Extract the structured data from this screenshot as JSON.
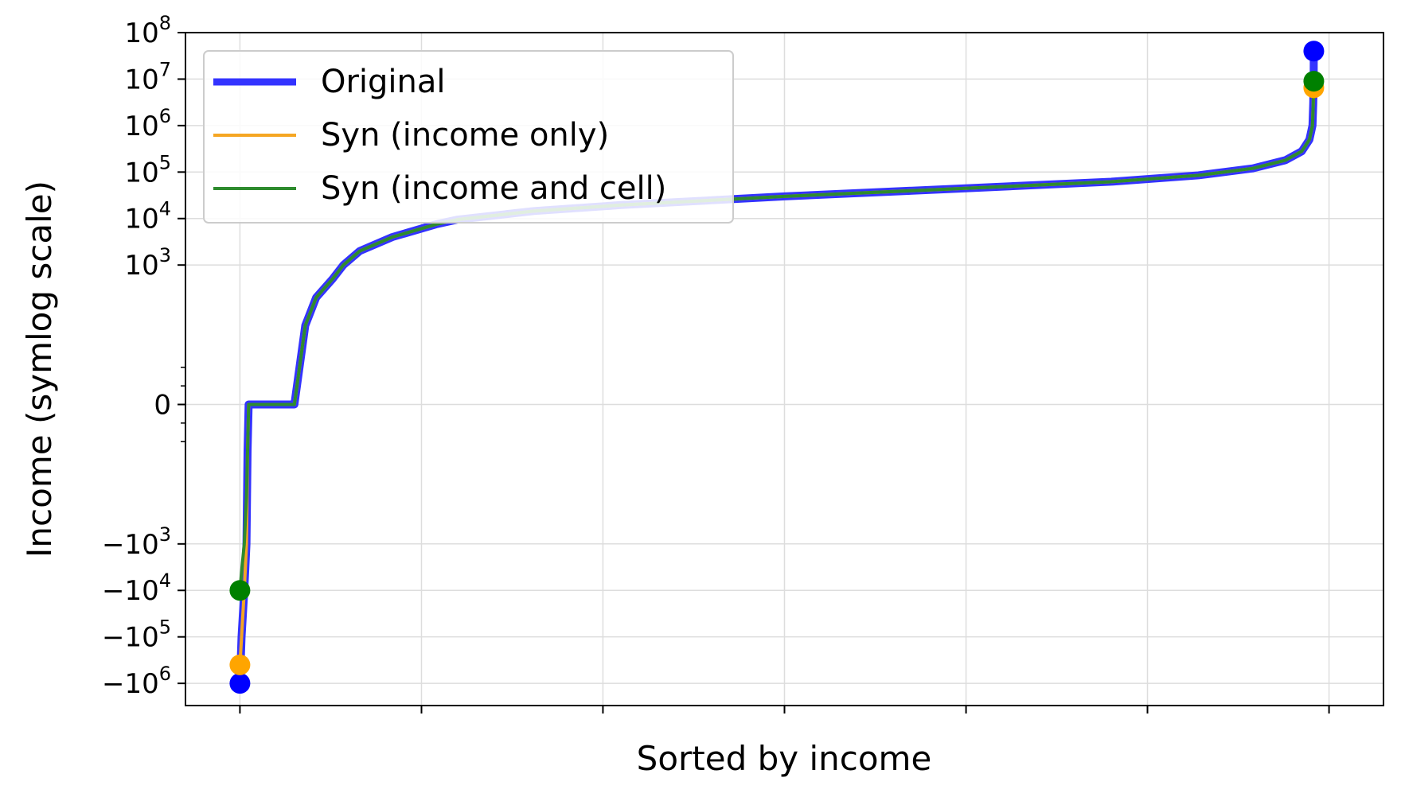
{
  "chart_data": {
    "type": "line",
    "title": "",
    "xlabel": "Sorted by income",
    "ylabel": "Income (symlog scale)",
    "yscale": "symlog",
    "linthresh": 10,
    "ylim": [
      -3000000,
      100000000
    ],
    "xlim": [
      -0.05,
      1.05
    ],
    "grid": true,
    "legend_position": "top-left",
    "y_ticks": [
      {
        "value": -1000000,
        "sign": "−",
        "base": "10",
        "exp": "6"
      },
      {
        "value": -100000,
        "sign": "−",
        "base": "10",
        "exp": "5"
      },
      {
        "value": -10000,
        "sign": "−",
        "base": "10",
        "exp": "4"
      },
      {
        "value": -1000,
        "sign": "−",
        "base": "10",
        "exp": "3"
      },
      {
        "value": 0,
        "sign": "",
        "base": "0",
        "exp": ""
      },
      {
        "value": 1000,
        "sign": "",
        "base": "10",
        "exp": "3"
      },
      {
        "value": 10000,
        "sign": "",
        "base": "10",
        "exp": "4"
      },
      {
        "value": 100000,
        "sign": "",
        "base": "10",
        "exp": "5"
      },
      {
        "value": 1000000,
        "sign": "",
        "base": "10",
        "exp": "6"
      },
      {
        "value": 10000000,
        "sign": "",
        "base": "10",
        "exp": "7"
      },
      {
        "value": 100000000,
        "sign": "",
        "base": "10",
        "exp": "8"
      }
    ],
    "x_ticks": [
      0,
      0.1667,
      0.3333,
      0.5,
      0.6667,
      0.8333,
      1.0
    ],
    "series": [
      {
        "name": "Original",
        "color": "#3333ff",
        "marker_color": "#0000ff",
        "points": [
          [
            0,
            -1000000
          ],
          [
            0.0015,
            -100000
          ],
          [
            0.004,
            -10000
          ],
          [
            0.006,
            -1000
          ],
          [
            0.007,
            -10
          ],
          [
            0.008,
            0
          ],
          [
            0.05,
            0
          ],
          [
            0.06,
            50
          ],
          [
            0.07,
            200
          ],
          [
            0.085,
            500
          ],
          [
            0.095,
            1000
          ],
          [
            0.11,
            2000
          ],
          [
            0.14,
            4000
          ],
          [
            0.18,
            7500
          ],
          [
            0.2,
            9500
          ],
          [
            0.27,
            14500
          ],
          [
            0.35,
            19500
          ],
          [
            0.5,
            30000
          ],
          [
            0.65,
            43000
          ],
          [
            0.8,
            62000
          ],
          [
            0.88,
            85000
          ],
          [
            0.93,
            120000
          ],
          [
            0.96,
            180000
          ],
          [
            0.975,
            280000
          ],
          [
            0.982,
            500000
          ],
          [
            0.9848,
            1000000
          ],
          [
            0.9855,
            3000000
          ],
          [
            0.9859,
            10000000
          ],
          [
            0.986,
            40000000
          ]
        ],
        "endpoints": [
          [
            0,
            -1000000
          ],
          [
            0.986,
            40000000
          ]
        ]
      },
      {
        "name": "Syn (income only)",
        "color": "#f5a623",
        "marker_color": "#ffa500",
        "points": [
          [
            0,
            -400000
          ],
          [
            0.0015,
            -100000
          ],
          [
            0.004,
            -10000
          ],
          [
            0.006,
            -1000
          ],
          [
            0.007,
            -10
          ],
          [
            0.008,
            0
          ],
          [
            0.05,
            0
          ],
          [
            0.06,
            50
          ],
          [
            0.07,
            200
          ],
          [
            0.085,
            500
          ],
          [
            0.095,
            1000
          ],
          [
            0.11,
            2000
          ],
          [
            0.14,
            4000
          ],
          [
            0.18,
            7500
          ],
          [
            0.2,
            9500
          ],
          [
            0.27,
            14500
          ],
          [
            0.35,
            19500
          ],
          [
            0.5,
            30000
          ],
          [
            0.65,
            43000
          ],
          [
            0.8,
            62000
          ],
          [
            0.88,
            85000
          ],
          [
            0.93,
            120000
          ],
          [
            0.96,
            180000
          ],
          [
            0.975,
            280000
          ],
          [
            0.982,
            500000
          ],
          [
            0.9848,
            1000000
          ],
          [
            0.9855,
            3000000
          ],
          [
            0.986,
            6500000
          ]
        ],
        "endpoints": [
          [
            0,
            -400000
          ],
          [
            0.986,
            6500000
          ]
        ]
      },
      {
        "name": "Syn (income and cell)",
        "color": "#2e8b2e",
        "marker_color": "#008000",
        "points": [
          [
            0,
            -10000
          ],
          [
            0.002,
            -3000
          ],
          [
            0.004,
            -1000
          ],
          [
            0.006,
            -100
          ],
          [
            0.007,
            -10
          ],
          [
            0.008,
            0
          ],
          [
            0.05,
            0
          ],
          [
            0.06,
            50
          ],
          [
            0.07,
            200
          ],
          [
            0.085,
            500
          ],
          [
            0.095,
            1000
          ],
          [
            0.11,
            2000
          ],
          [
            0.14,
            4000
          ],
          [
            0.18,
            7500
          ],
          [
            0.2,
            9500
          ],
          [
            0.27,
            14500
          ],
          [
            0.35,
            19500
          ],
          [
            0.5,
            30000
          ],
          [
            0.65,
            43000
          ],
          [
            0.8,
            62000
          ],
          [
            0.88,
            85000
          ],
          [
            0.93,
            120000
          ],
          [
            0.96,
            180000
          ],
          [
            0.975,
            280000
          ],
          [
            0.982,
            500000
          ],
          [
            0.9848,
            1000000
          ],
          [
            0.9855,
            3000000
          ],
          [
            0.986,
            9000000
          ]
        ],
        "endpoints": [
          [
            0,
            -10000
          ],
          [
            0.986,
            9000000
          ]
        ]
      }
    ]
  }
}
